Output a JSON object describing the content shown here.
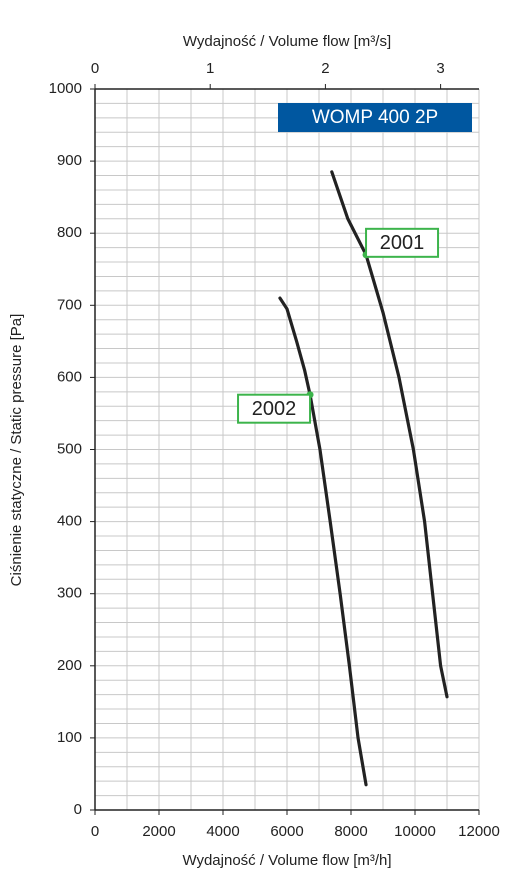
{
  "chart_data": {
    "type": "line",
    "title": "WOMP 400 2P",
    "x_label": "Wydajność / Volume flow [m³/h]",
    "x2_label": "Wydajność / Volume flow [m³/s]",
    "y_label": "Ciśnienie statyczne / Static pressure [Pa]",
    "xlim": [
      0,
      12000
    ],
    "xticks": [
      0,
      2000,
      4000,
      6000,
      8000,
      10000,
      12000
    ],
    "x2lim": [
      0,
      3.3333
    ],
    "x2ticks": [
      0,
      1,
      2,
      3
    ],
    "ylim": [
      0,
      1000
    ],
    "yticks": [
      0,
      100,
      200,
      300,
      400,
      500,
      600,
      700,
      800,
      900,
      1000
    ],
    "grid": true,
    "series": [
      {
        "name": "2001",
        "color": "#222222",
        "x": [
          7400,
          7900,
          8470,
          9000,
          9500,
          9950,
          10300,
          10550,
          10800,
          11000
        ],
        "values": [
          885,
          820,
          770,
          690,
          600,
          500,
          400,
          300,
          200,
          157
        ],
        "marker": {
          "x": 8470,
          "y": 770,
          "color": "#3cb44b"
        }
      },
      {
        "name": "2002",
        "color": "#222222",
        "x": [
          5780,
          6000,
          6300,
          6550,
          6720,
          7030,
          7350,
          7660,
          7950,
          8220,
          8470
        ],
        "values": [
          710,
          695,
          650,
          610,
          576,
          500,
          400,
          300,
          200,
          100,
          35
        ],
        "marker": {
          "x": 6720,
          "y": 576,
          "color": "#3cb44b"
        }
      }
    ]
  }
}
